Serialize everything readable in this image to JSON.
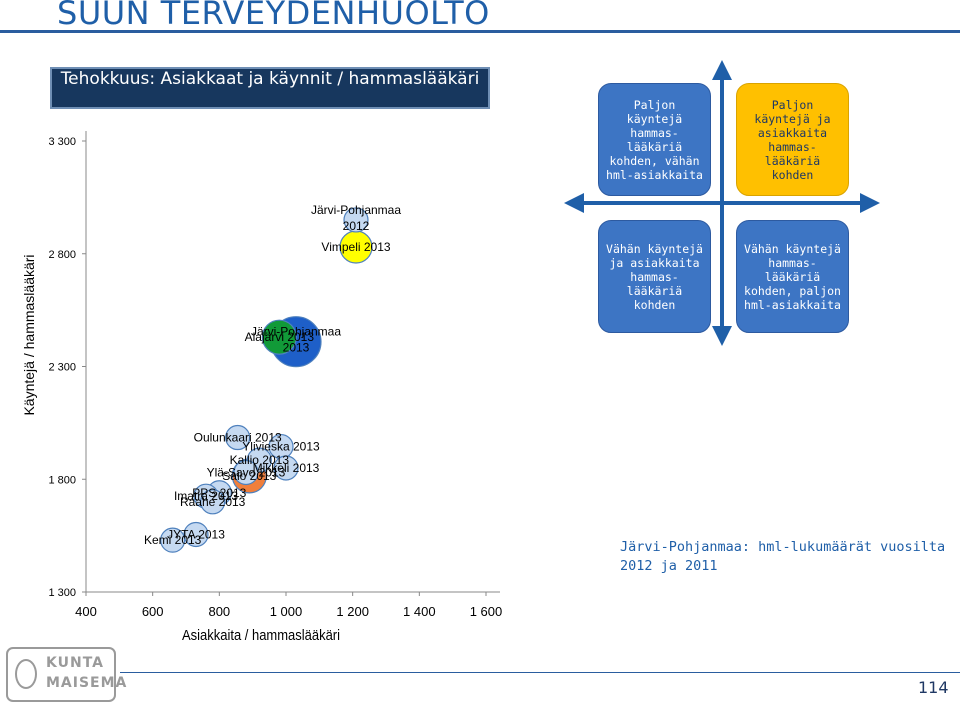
{
  "page": {
    "title": "SUUN TERVEYDENHUOLTO",
    "page_number": "114",
    "logo_lines": [
      "KUNTA",
      "MAISEMA"
    ]
  },
  "note": "Järvi-Pohjanmaa: hml-lukumäärät vuosilta 2012 ja 2011",
  "quadrants": {
    "top_left": "Paljon käyntejä hammas-lääkäriä kohden, vähän hml-asiakkaita",
    "top_right": "Paljon käyntejä ja asiakkaita hammas-lääkäriä kohden",
    "bottom_left": "Vähän käyntejä ja asiakkaita hammas-lääkäriä kohden",
    "bottom_right": "Vähän käyntejä hammas-lääkäriä kohden, paljon hml-asiakkaita"
  },
  "colors": {
    "accent": "#1f5fa8",
    "title_box": "#17375e",
    "bubble_default": "#c5d9f1",
    "bubble_green": "#119a38",
    "bubble_blue": "#1e5fc8",
    "bubble_yellow": "#ffff00",
    "bubble_orange": "#f07f3c"
  },
  "chart_data": {
    "type": "scatter",
    "title": "Tehokkuus: Asiakkaat ja käynnit / hammaslääkäri",
    "xlabel": "Asiakkaita / hammaslääkäri",
    "ylabel": "Käyntejä / hammaslääkäri",
    "xlim": [
      400,
      1600
    ],
    "ylim": [
      1300,
      3300
    ],
    "x_ticks": [
      "400",
      "600",
      "800",
      "1 000",
      "1 200",
      "1 400",
      "1 600"
    ],
    "y_ticks": [
      "1 300",
      "1 800",
      "2 300",
      "2 800",
      "3 300"
    ],
    "points": [
      {
        "label": "Järvi-Pohjanmaa 2012",
        "x": 1210,
        "y": 2950,
        "color": "#c5d9f1"
      },
      {
        "label": "Vimpeli 2013",
        "x": 1210,
        "y": 2830,
        "color": "#ffff00"
      },
      {
        "label": "Järvi-Pohjanmaa 2013",
        "x": 1030,
        "y": 2410,
        "color": "#1e5fc8"
      },
      {
        "label": "Alajärvi 2013",
        "x": 980,
        "y": 2430,
        "color": "#119a38"
      },
      {
        "label": "Oulunkaari 2013",
        "x": 855,
        "y": 1985,
        "color": "#c5d9f1"
      },
      {
        "label": "Ylivieska 2013",
        "x": 985,
        "y": 1945,
        "color": "#c5d9f1"
      },
      {
        "label": "Kallio 2013",
        "x": 920,
        "y": 1885,
        "color": "#c5d9f1"
      },
      {
        "label": "Mikkeli 2013",
        "x": 1000,
        "y": 1850,
        "color": "#c5d9f1"
      },
      {
        "label": "Ylä-Savo 2013",
        "x": 880,
        "y": 1830,
        "color": "#c5d9f1"
      },
      {
        "label": "Salo 2013",
        "x": 890,
        "y": 1815,
        "color": "#f07f3c"
      },
      {
        "label": "PPS 2013",
        "x": 800,
        "y": 1740,
        "color": "#c5d9f1"
      },
      {
        "label": "Imatra 2013",
        "x": 760,
        "y": 1725,
        "color": "#c5d9f1"
      },
      {
        "label": "Raahe 2013",
        "x": 780,
        "y": 1700,
        "color": "#c5d9f1"
      },
      {
        "label": "JYTA 2013",
        "x": 730,
        "y": 1555,
        "color": "#c5d9f1"
      },
      {
        "label": "Kemi 2013",
        "x": 660,
        "y": 1530,
        "color": "#c5d9f1"
      }
    ]
  }
}
